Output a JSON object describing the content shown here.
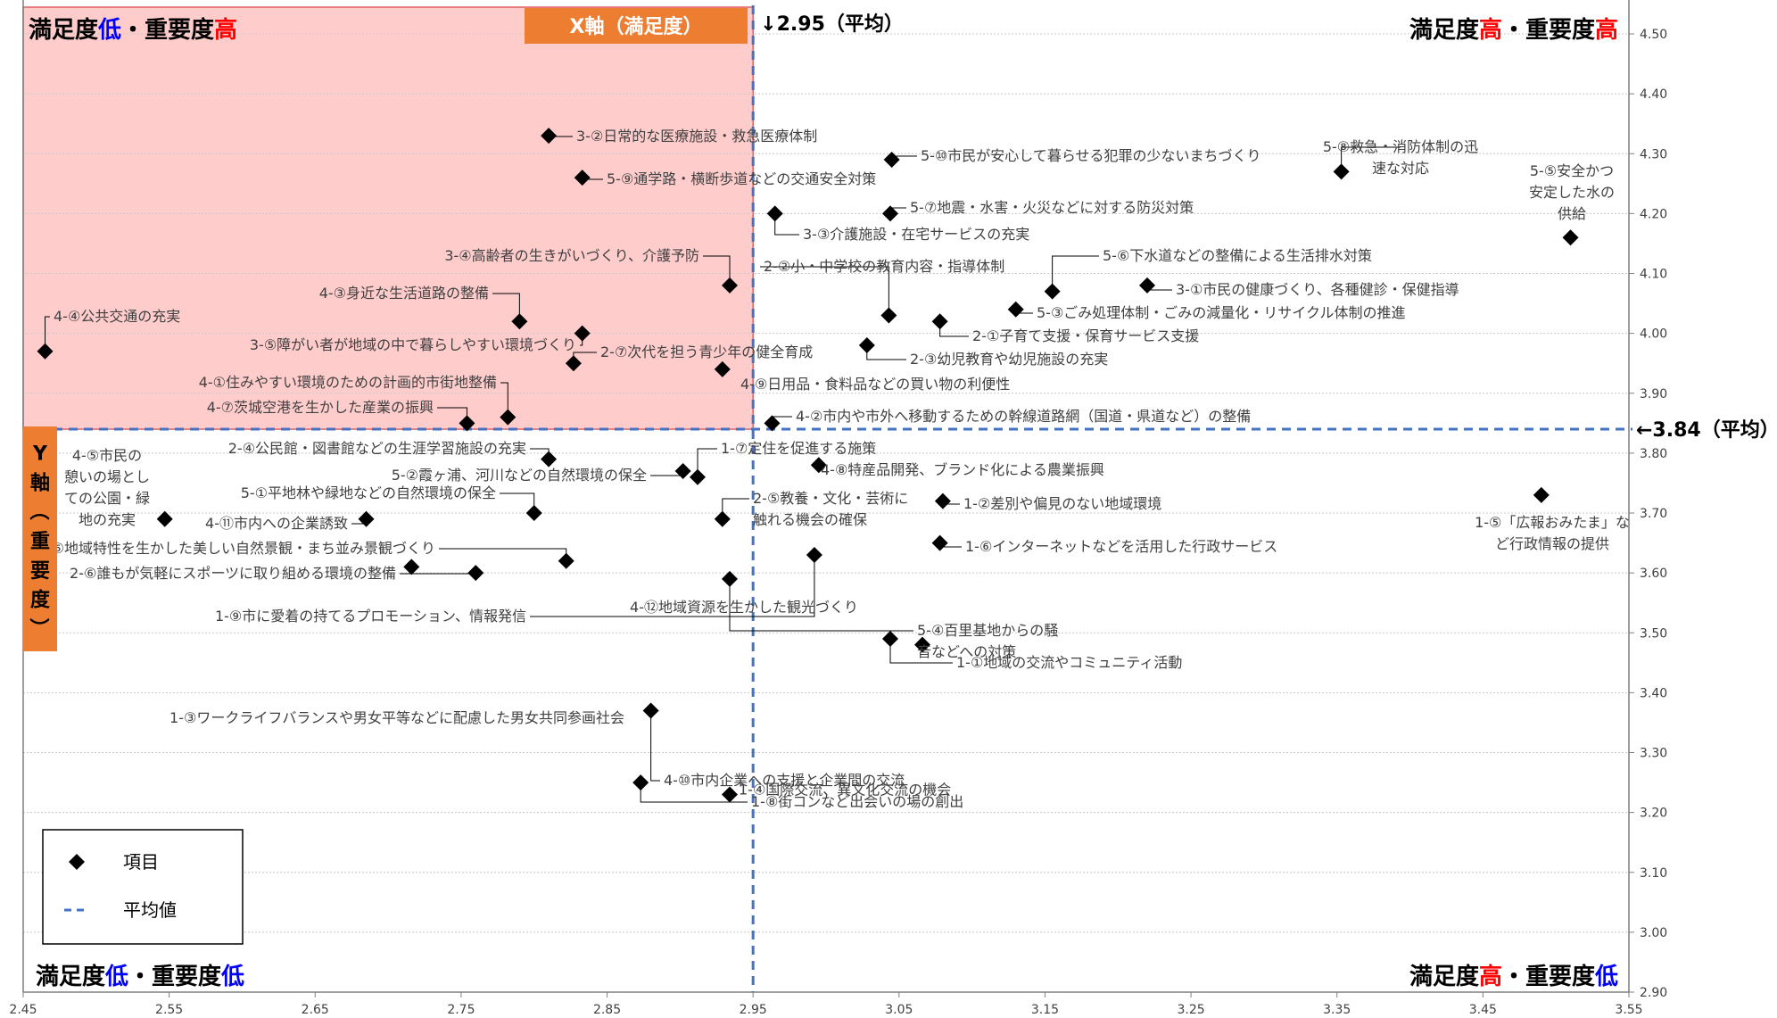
{
  "chart_data": {
    "type": "scatter",
    "title": "",
    "xlim": [
      2.45,
      3.55
    ],
    "ylim": [
      2.9,
      4.5
    ],
    "x_ticks": [
      "2.45",
      "2.55",
      "2.65",
      "2.75",
      "2.85",
      "2.95",
      "3.05",
      "3.15",
      "3.25",
      "3.35",
      "3.45",
      "3.55"
    ],
    "y_ticks": [
      "2.90",
      "3.00",
      "3.10",
      "3.20",
      "3.30",
      "3.40",
      "3.50",
      "3.60",
      "3.70",
      "3.80",
      "3.90",
      "4.00",
      "4.10",
      "4.20",
      "4.30",
      "4.40",
      "4.50"
    ],
    "grid": "horizontal",
    "avg_x": 2.95,
    "avg_y": 3.84,
    "avg_x_label": "↓2.95（平均）",
    "avg_y_label": "←3.84（平均）",
    "x_axis_label": "X軸（満足度）",
    "y_axis_label": "Y軸（重要度）",
    "quadrant_labels": {
      "top_left": [
        "満足度",
        "低",
        "・重要度",
        "高"
      ],
      "top_right": [
        "満足度",
        "高",
        "・重要度",
        "高"
      ],
      "bottom_left": [
        "満足度",
        "低",
        "・重要度",
        "低"
      ],
      "bottom_right": [
        "満足度",
        "高",
        "・重要度",
        "低"
      ]
    },
    "colors": {
      "highlight_fill": "#ffcccc",
      "highlight_border": "#e06060",
      "axis_label_bg": "#ed7d31",
      "avg_line": "#4472c4",
      "marker": "#000000",
      "label_text": "#404040",
      "red": "#ff0000",
      "blue": "#0000ff"
    },
    "legend": {
      "placement": "bottom-left",
      "items": [
        {
          "symbol": "diamond",
          "label": "項目"
        },
        {
          "symbol": "dashed-line",
          "label": "平均値"
        }
      ]
    },
    "points": [
      {
        "x": 2.465,
        "y": 3.97,
        "label": [
          "4-④公共交通の充実"
        ]
      },
      {
        "x": 2.81,
        "y": 4.33,
        "label": [
          "3-②日常的な医療施設・救急医療体制"
        ]
      },
      {
        "x": 2.833,
        "y": 4.26,
        "label": [
          "5-⑨通学路・横断歩道などの交通安全対策"
        ]
      },
      {
        "x": 2.934,
        "y": 4.08,
        "label": [
          "3-④高齢者の生きがいづくり、介護予防"
        ]
      },
      {
        "x": 2.79,
        "y": 4.02,
        "label": [
          "4-③身近な生活道路の整備"
        ]
      },
      {
        "x": 2.833,
        "y": 4.0,
        "label": [
          "3-⑤障がい者が地域の中で暮らしやすい環境づくり"
        ]
      },
      {
        "x": 2.827,
        "y": 3.95,
        "label": [
          "2-⑦次代を担う青少年の健全育成"
        ]
      },
      {
        "x": 2.929,
        "y": 3.94,
        "label": [
          "4-⑨日用品・食料品などの買い物の利便性"
        ]
      },
      {
        "x": 2.782,
        "y": 3.86,
        "label": [
          "4-①住みやすい環境のための計画的市街地整備"
        ]
      },
      {
        "x": 2.754,
        "y": 3.85,
        "label": [
          "4-⑦茨城空港を生かした産業の振興"
        ]
      },
      {
        "x": 2.965,
        "y": 4.2,
        "label": [
          "3-③介護施設・在宅サービスの充実"
        ]
      },
      {
        "x": 3.045,
        "y": 4.29,
        "label": [
          "5-⑩市民が安心して暮らせる犯罪の少ないまちづくり"
        ]
      },
      {
        "x": 3.044,
        "y": 4.2,
        "label": [
          "5-⑦地震・水害・火災などに対する防災対策"
        ]
      },
      {
        "x": 3.353,
        "y": 4.27,
        "label": [
          "5-⑧救急・消防体制の迅",
          "速な対応"
        ]
      },
      {
        "x": 3.51,
        "y": 4.16,
        "label": [
          "5-⑤安全かつ",
          "安定した水の",
          "供給"
        ]
      },
      {
        "x": 3.155,
        "y": 4.07,
        "label": [
          "5-⑥下水道などの整備による生活排水対策"
        ]
      },
      {
        "x": 3.22,
        "y": 4.08,
        "label": [
          "3-①市民の健康づくり、各種健診・保健指導"
        ]
      },
      {
        "x": 3.13,
        "y": 4.04,
        "label": [
          "5-③ごみ処理体制・ごみの減量化・リサイクル体制の推進"
        ]
      },
      {
        "x": 3.043,
        "y": 4.03,
        "label": [
          "2-②小・中学校の教育内容・指導体制"
        ]
      },
      {
        "x": 3.078,
        "y": 4.02,
        "label": [
          "2-①子育て支援・保育サービス支援"
        ]
      },
      {
        "x": 3.028,
        "y": 3.98,
        "label": [
          "2-③幼児教育や幼児施設の充実"
        ]
      },
      {
        "x": 2.963,
        "y": 3.85,
        "label": [
          "4-②市内や市外へ移動するための幹線道路網（国道・県道など）の整備"
        ]
      },
      {
        "x": 2.81,
        "y": 3.79,
        "label": [
          "2-④公民館・図書館などの生涯学習施設の充実"
        ]
      },
      {
        "x": 2.902,
        "y": 3.77,
        "label": [
          "5-②霞ヶ浦、河川などの自然環境の保全"
        ]
      },
      {
        "x": 2.912,
        "y": 3.76,
        "label": [
          "1-⑦定住を促進する施策"
        ]
      },
      {
        "x": 2.995,
        "y": 3.78,
        "label": [
          "4-⑧特産品開発、ブランド化による農業振興"
        ]
      },
      {
        "x": 3.08,
        "y": 3.72,
        "label": [
          "1-②差別や偏見のない地域環境"
        ]
      },
      {
        "x": 3.49,
        "y": 3.73,
        "label": [
          "1-⑤「広報おみたま」な",
          "ど行政情報の提供"
        ]
      },
      {
        "x": 2.547,
        "y": 3.69,
        "label": [
          "4-⑤市民の",
          "憩いの場とし",
          "ての公園・緑",
          "地の充実"
        ]
      },
      {
        "x": 2.685,
        "y": 3.69,
        "label": [
          "4-⑪市内への企業誘致"
        ]
      },
      {
        "x": 2.8,
        "y": 3.7,
        "label": [
          "5-①平地林や緑地などの自然環境の保全"
        ]
      },
      {
        "x": 2.929,
        "y": 3.69,
        "label": [
          "2-⑤教養・文化・芸術に",
          "触れる機会の確保"
        ]
      },
      {
        "x": 3.078,
        "y": 3.65,
        "label": [
          "1-⑥インターネットなどを活用した行政サービス"
        ]
      },
      {
        "x": 2.992,
        "y": 3.63,
        "label": [
          "1-⑨市に愛着の持てるプロモーション、情報発信"
        ]
      },
      {
        "x": 2.822,
        "y": 3.62,
        "label": [
          "4-⑥地域特性を生かした美しい自然景観・まち並み景観づくり"
        ]
      },
      {
        "x": 2.76,
        "y": 3.6,
        "label": [
          "2-⑥誰もが気軽にスポーツに取り組める環境の整備"
        ]
      },
      {
        "x": 2.716,
        "y": 3.61,
        "label": [
          "4-⑫地域資源を生かした観光づくり"
        ]
      },
      {
        "x": 2.934,
        "y": 3.59,
        "label": [
          "5-④百里基地からの騒",
          "音などへの対策"
        ]
      },
      {
        "x": 3.044,
        "y": 3.49,
        "label": [
          "1-①地域の交流やコミュニティ活動"
        ]
      },
      {
        "x": 3.066,
        "y": 3.48,
        "label": [
          "1-③ワークライフバランスや男女平等などに配慮した男女共同参画社会"
        ]
      },
      {
        "x": 2.88,
        "y": 3.37,
        "label": [
          "4-⑩市内企業への支援と企業間の交流"
        ]
      },
      {
        "x": 2.873,
        "y": 3.25,
        "label": [
          "1-⑧街コンなど出会いの場の創出"
        ]
      },
      {
        "x": 2.934,
        "y": 3.23,
        "label": [
          "1-④国際交流、異文化交流の機会"
        ]
      }
    ]
  }
}
